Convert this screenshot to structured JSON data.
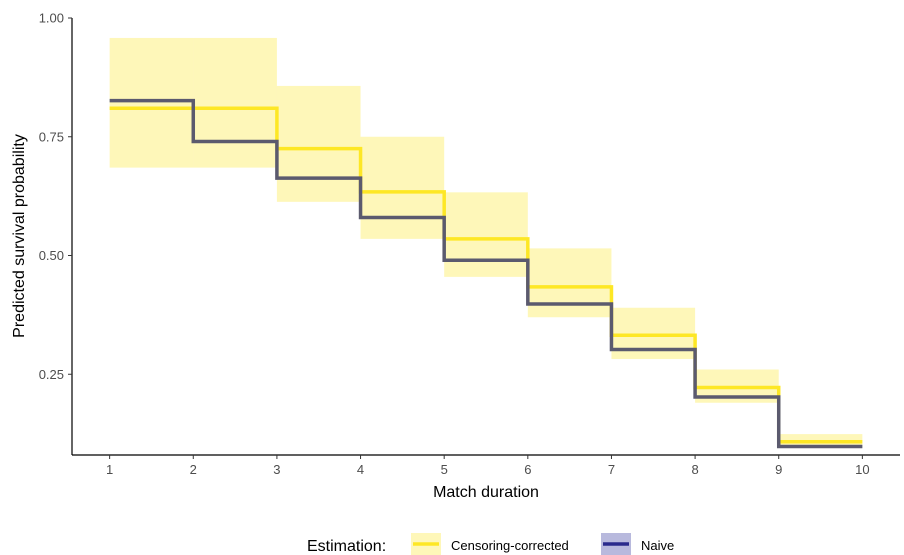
{
  "chart_data": {
    "type": "line",
    "step": true,
    "xlabel": "Match duration",
    "ylabel": "Predicted survival probability",
    "xlim": [
      0.55,
      10.45
    ],
    "ylim": [
      0.08,
      1.0
    ],
    "x_ticks": [
      1,
      2,
      3,
      4,
      5,
      6,
      7,
      8,
      9,
      10
    ],
    "y_ticks": [
      0.25,
      0.5,
      0.75,
      1.0
    ],
    "y_tick_labels": [
      "0.25",
      "0.50",
      "0.75",
      "1.00"
    ],
    "grid": false,
    "legend": {
      "position": "bottom",
      "title": "Estimation:",
      "entries": [
        "Censoring-corrected",
        "Naive"
      ]
    },
    "series": [
      {
        "name": "Censoring-corrected",
        "color": "#FDE725",
        "band_color": "#FDE725",
        "x": [
          1,
          2,
          3,
          4,
          5,
          6,
          7,
          8,
          9,
          10
        ],
        "values": [
          0.81,
          0.81,
          0.725,
          0.634,
          0.535,
          0.434,
          0.332,
          0.222,
          0.108,
          0.108
        ],
        "lower": [
          0.685,
          0.685,
          0.613,
          0.535,
          0.455,
          0.37,
          0.282,
          0.19,
          0.096,
          0.096
        ],
        "upper": [
          0.958,
          0.958,
          0.857,
          0.75,
          0.633,
          0.515,
          0.39,
          0.26,
          0.124,
          0.124
        ]
      },
      {
        "name": "Naive",
        "color": "#2A2A8C",
        "line_display_color": "#5B5A6E",
        "band_color": "#9A9BCF",
        "x": [
          1,
          2,
          3,
          4,
          5,
          6,
          7,
          8,
          9,
          10
        ],
        "values": [
          0.826,
          0.74,
          0.663,
          0.58,
          0.49,
          0.398,
          0.302,
          0.202,
          0.098,
          0.098
        ],
        "lower": [
          0.826,
          0.74,
          0.663,
          0.58,
          0.49,
          0.398,
          0.302,
          0.202,
          0.098,
          0.098
        ],
        "upper": [
          0.826,
          0.74,
          0.663,
          0.58,
          0.49,
          0.398,
          0.302,
          0.202,
          0.098,
          0.098
        ]
      }
    ]
  }
}
